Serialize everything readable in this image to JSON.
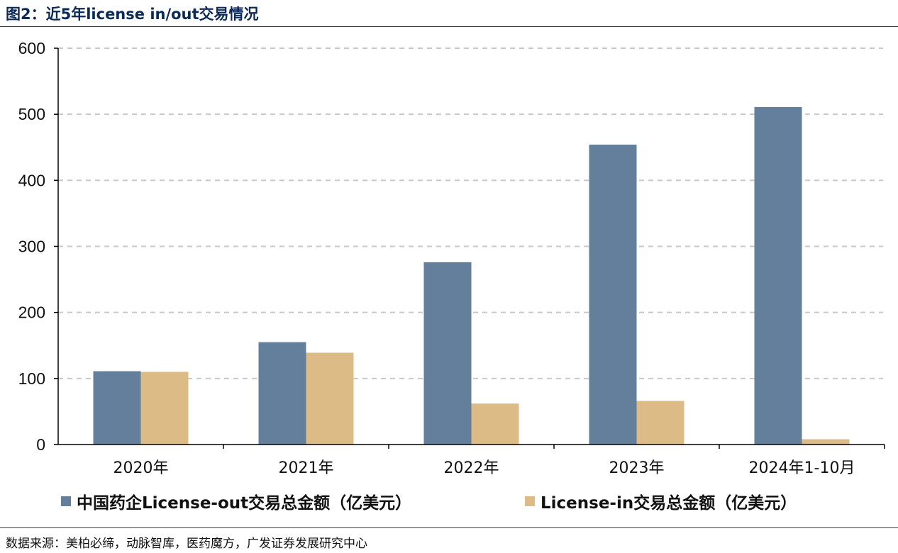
{
  "figure_title": "图2：近5年license in/out交易情况",
  "source_note": "数据来源：美柏必缔，动脉智库，医药魔方，广发证券发展研究中心",
  "colors": {
    "series_out": "#637f9b",
    "series_in": "#dcbb86",
    "grid": "#c8c8c8",
    "axis": "#000000",
    "title": "#0b2a57"
  },
  "chart_data": {
    "type": "bar",
    "categories": [
      "2020年",
      "2021年",
      "2022年",
      "2023年",
      "2024年1-10月"
    ],
    "series": [
      {
        "name": "中国药企License-out交易总金额（亿美元）",
        "values": [
          111,
          155,
          276,
          454,
          511
        ]
      },
      {
        "name": "License-in交易总金额（亿美元）",
        "values": [
          110,
          139,
          62,
          66,
          8
        ]
      }
    ],
    "y_ticks": [
      0,
      100,
      200,
      300,
      400,
      500,
      600
    ],
    "ylim": [
      0,
      600
    ],
    "grid": "horizontal-dashed",
    "legend_position": "bottom"
  }
}
